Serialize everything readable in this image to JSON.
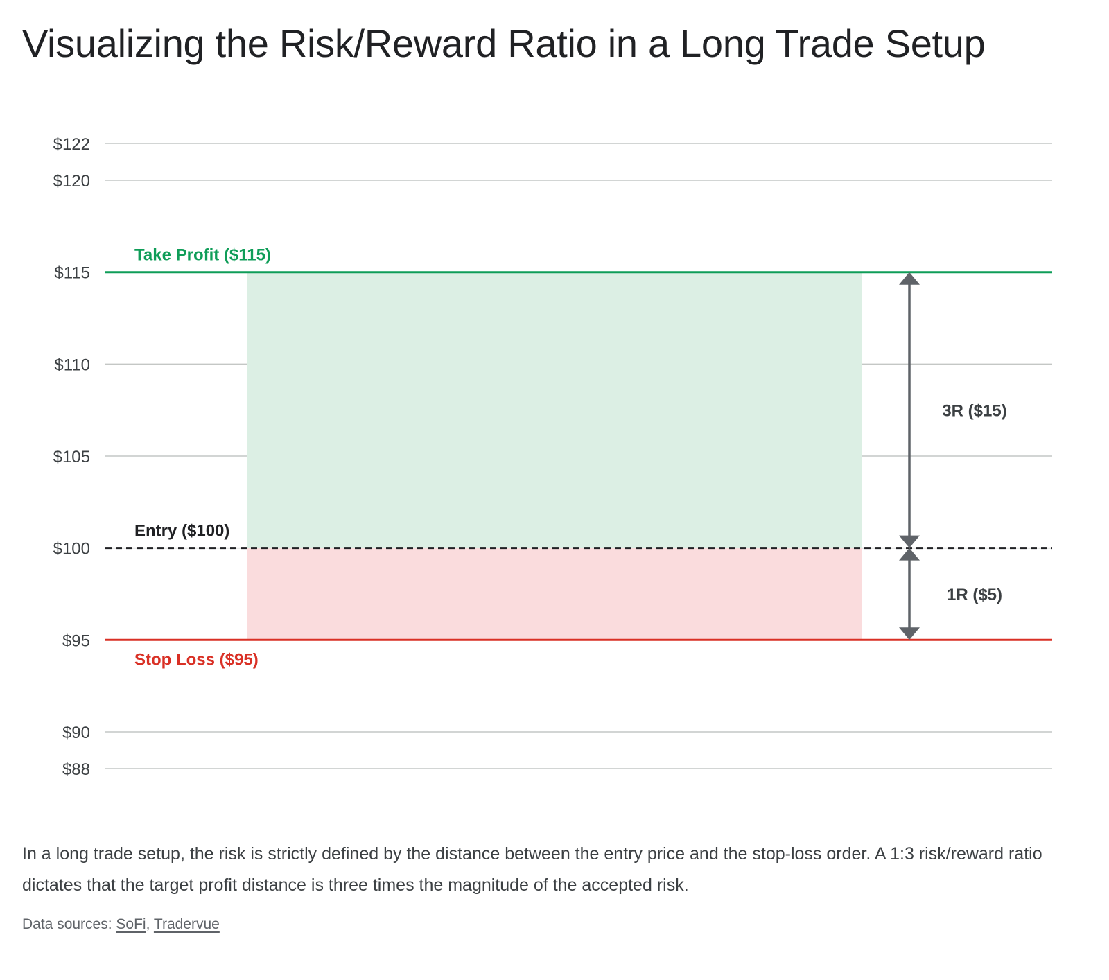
{
  "title": "Visualizing the Risk/Reward Ratio in a Long Trade Setup",
  "caption": "In a long trade setup, the risk is strictly defined by the distance between the entry price and the stop-loss order. A 1:3 risk/reward ratio dictates that the target profit distance is three times the magnitude of the accepted risk.",
  "sources": {
    "label": "Data sources:",
    "separator": ",",
    "links": [
      {
        "text": "SoFi"
      },
      {
        "text": "Tradervue"
      }
    ]
  },
  "chart_data": {
    "type": "line",
    "ylim": [
      88,
      122
    ],
    "yticks": [
      122,
      120,
      115,
      110,
      105,
      100,
      95,
      90,
      88
    ],
    "ytick_labels": [
      "$122",
      "$120",
      "$115",
      "$110",
      "$105",
      "$100",
      "$95",
      "$90",
      "$88"
    ],
    "grid": true,
    "levels": [
      {
        "name": "take-profit",
        "label": "Take Profit ($115)",
        "value": 115,
        "color": "#0f9d58",
        "style": "solid"
      },
      {
        "name": "entry",
        "label": "Entry ($100)",
        "value": 100,
        "color": "#202124",
        "style": "dashed"
      },
      {
        "name": "stop-loss",
        "label": "Stop Loss ($95)",
        "value": 95,
        "color": "#d93025",
        "style": "solid"
      }
    ],
    "zones": [
      {
        "name": "reward-zone",
        "from": 100,
        "to": 115,
        "color": "#dcefe4"
      },
      {
        "name": "risk-zone",
        "from": 95,
        "to": 100,
        "color": "#fadcdd"
      }
    ],
    "measurements": [
      {
        "name": "reward-measure",
        "label": "3R ($15)",
        "from": 100,
        "to": 115
      },
      {
        "name": "risk-measure",
        "label": "1R ($5)",
        "from": 95,
        "to": 100
      }
    ],
    "colors": {
      "grid": "#c4c7c5",
      "tick_label": "#3c4043",
      "arrow": "#5f6368",
      "measure_label": "#3c4043"
    }
  }
}
